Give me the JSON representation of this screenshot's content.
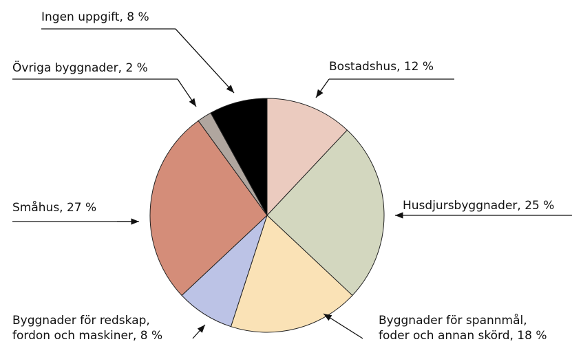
{
  "chart_data": {
    "type": "pie",
    "values": [
      12,
      25,
      18,
      8,
      27,
      2,
      8
    ],
    "value_labels": [
      [
        "Bostadshus, 12 %"
      ],
      [
        "Husdjursbyggnader, 25 %"
      ],
      [
        "Byggnader för spannmål,",
        "foder och annan skörd, 18 %"
      ],
      [
        "Byggnader för redskap,",
        "fordon och maskiner, 8 %"
      ],
      [
        "Småhus, 27 %"
      ],
      [
        "Övriga byggnader, 2 %"
      ],
      [
        "Ingen uppgift, 8 %"
      ]
    ],
    "colors": [
      "#ebcbbf",
      "#d3d7bf",
      "#fae2b6",
      "#bcc3e6",
      "#d48d79",
      "#b0a69f",
      "#000000"
    ]
  }
}
